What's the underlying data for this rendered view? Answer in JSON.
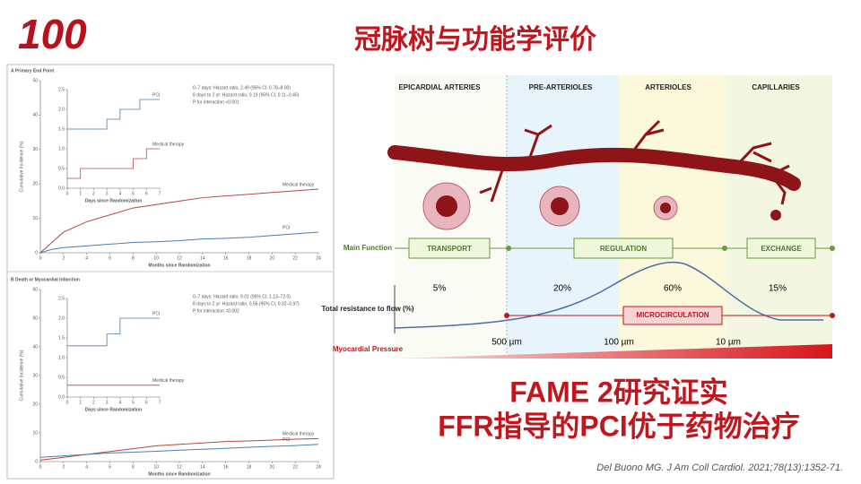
{
  "header": {
    "logo": "100",
    "title": "冠脉树与功能学评价"
  },
  "figure": {
    "panels": [
      {
        "label": "A  Primary End Point",
        "ylabel": "Cumulative Incidence (%)",
        "xlabel": "Months since Randomization",
        "xlim": [
          0,
          24
        ],
        "ylim": [
          0,
          50
        ],
        "xticks": [
          0,
          2,
          4,
          6,
          8,
          10,
          12,
          14,
          16,
          18,
          20,
          22,
          24
        ],
        "yticks": [
          0,
          10,
          20,
          30,
          40,
          50
        ],
        "stats": [
          "0–7 days: Hazard ratio, 2.49 (95% CI, 0.78–8.00)",
          "8 days to 2 yr: Hazard ratio, 0.19 (95% CI, 0.11–0.45)",
          "P for interaction <0.001"
        ],
        "series": [
          {
            "name": "Medical therapy",
            "color": "#b04848",
            "x": [
              0,
              1,
              2,
              4,
              6,
              8,
              10,
              12,
              14,
              16,
              18,
              20,
              22,
              24
            ],
            "values": [
              0,
              3,
              6,
              9,
              11,
              13,
              14,
              15,
              16,
              16.5,
              17,
              17.5,
              18,
              18.5
            ]
          },
          {
            "name": "PCI",
            "color": "#4a7fb0",
            "x": [
              0,
              1,
              2,
              4,
              6,
              8,
              10,
              12,
              14,
              16,
              18,
              20,
              22,
              24
            ],
            "values": [
              0,
              1,
              1.5,
              2,
              2.5,
              3,
              3.2,
              3.5,
              4,
              4.2,
              4.5,
              5,
              5.5,
              6
            ]
          }
        ],
        "inset": {
          "xlabel": "Days since Randomization",
          "xlim": [
            0,
            7
          ],
          "ylim": [
            0,
            2.5
          ],
          "xticks": [
            0,
            1,
            2,
            3,
            4,
            5,
            6,
            7
          ],
          "yticks": [
            {
              "value": 0,
              "label": "0.0"
            },
            0.5,
            {
              "value": 1,
              "label": "1.0"
            },
            1.5,
            {
              "value": 2,
              "label": "2.0"
            },
            2.5
          ],
          "series": [
            {
              "name": "PCI",
              "color": "#4a7fb0",
              "x": [
                0,
                3,
                3,
                4,
                4,
                5.5,
                5.5,
                7
              ],
              "values": [
                1.5,
                1.5,
                1.75,
                1.75,
                2,
                2,
                2.25,
                2.25
              ]
            },
            {
              "name": "Medical therapy",
              "color": "#b04848",
              "x": [
                0,
                1,
                1,
                3,
                3,
                5,
                5,
                6,
                6,
                7
              ],
              "values": [
                0.25,
                0.25,
                0.5,
                0.5,
                0.5,
                0.5,
                0.75,
                0.75,
                1,
                1
              ]
            }
          ]
        }
      },
      {
        "label": "B  Death or Myocardial Infarction",
        "ylabel": "Cumulative Incidence (%)",
        "xlabel": "Months since Randomization",
        "xlim": [
          0,
          24
        ],
        "ylim": [
          0,
          60
        ],
        "xticks": [
          0,
          2,
          4,
          6,
          8,
          10,
          12,
          14,
          16,
          18,
          20,
          22,
          24
        ],
        "yticks": [
          0,
          10,
          20,
          30,
          40,
          50,
          60
        ],
        "stats": [
          "0–7 days: Hazard ratio, 9.01 (95% CI, 1.13–72.0)",
          "8 days to 2 yr: Hazard ratio, 0.56 (95% CI, 0.32–0.97)",
          "P for interaction =0.002"
        ],
        "series": [
          {
            "name": "Medical therapy",
            "color": "#b04848",
            "x": [
              0,
              2,
              4,
              6,
              8,
              10,
              12,
              14,
              16,
              18,
              20,
              22,
              24
            ],
            "values": [
              0.5,
              1.5,
              2.5,
              3.5,
              4.5,
              5.5,
              6,
              6.5,
              7,
              7.2,
              7.5,
              7.8,
              8
            ]
          },
          {
            "name": "PCI",
            "color": "#4a7fb0",
            "x": [
              0,
              2,
              4,
              6,
              8,
              10,
              12,
              14,
              16,
              18,
              20,
              22,
              24
            ],
            "values": [
              1.5,
              2,
              2.5,
              3,
              3.3,
              3.6,
              4,
              4.3,
              4.6,
              5,
              5.3,
              5.6,
              6
            ]
          }
        ],
        "inset": {
          "xlabel": "Days since Randomization",
          "xlim": [
            0,
            7
          ],
          "ylim": [
            0,
            2.5
          ],
          "xticks": [
            0,
            1,
            2,
            3,
            4,
            5,
            6,
            7
          ],
          "yticks": [
            {
              "value": 0,
              "label": "0.0"
            },
            0.5,
            {
              "value": 1,
              "label": "1.0"
            },
            1.5,
            {
              "value": 2,
              "label": "2.0"
            },
            2.5
          ],
          "series": [
            {
              "name": "PCI",
              "color": "#4a7fb0",
              "x": [
                0,
                3,
                3,
                4,
                4,
                7
              ],
              "values": [
                1.3,
                1.3,
                1.6,
                1.6,
                2,
                2
              ]
            },
            {
              "name": "Medical therapy",
              "color": "#b04848",
              "x": [
                0,
                7
              ],
              "values": [
                0.3,
                0.3
              ]
            }
          ]
        }
      }
    ]
  },
  "diagram": {
    "columns": [
      "EPICARDIAL ARTERIES",
      "PRE-ARTERIOLES",
      "ARTERIOLES",
      "CAPILLARIES"
    ],
    "main_function": "Main Function",
    "functions": [
      "TRANSPORT",
      "REGULATION",
      "EXCHANGE"
    ],
    "resistance_label": "Total resistance to flow (%)",
    "resistance": [
      "5%",
      "20%",
      "60%",
      "15%"
    ],
    "microcirculation": "MICROCIRCULATION",
    "pressure_label": "Myocardial Pressure",
    "sizes": [
      "500 µm",
      "100 µm",
      "10 µm"
    ]
  },
  "conclusion": {
    "lines": [
      "FAME 2研究证实",
      "FFR指导的PCI优于药物治疗"
    ]
  },
  "citation": "Del Buono MG. J Am Coll Cardiol. 2021;78(13):1352-71."
}
